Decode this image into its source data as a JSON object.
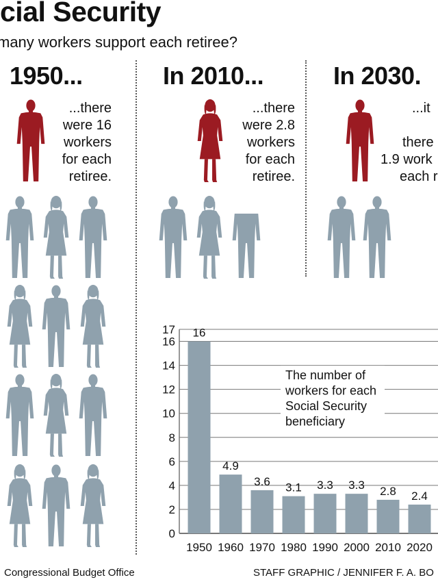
{
  "header": {
    "title": "cial Security",
    "subtitle": "many workers support each retiree?"
  },
  "eras": [
    {
      "label": "1950...",
      "caption": [
        "...there",
        "were 16",
        "workers",
        "for each",
        "retiree."
      ]
    },
    {
      "label": "In 2010...",
      "caption": [
        "...there",
        "were 2.8",
        "workers",
        "for each",
        "retiree."
      ]
    },
    {
      "label": "In 2030.",
      "caption": [
        "...it",
        "",
        "there",
        "1.9 work",
        "each r"
      ]
    }
  ],
  "colors": {
    "retiree": "#9b1b22",
    "worker": "#8fa1ad",
    "bar": "#8fa1ad",
    "grid": "#777777"
  },
  "chart_data": {
    "type": "bar",
    "categories": [
      "1950",
      "1960",
      "1970",
      "1980",
      "1990",
      "2000",
      "2010",
      "2020"
    ],
    "values": [
      16,
      4.9,
      3.6,
      3.1,
      3.3,
      3.3,
      2.8,
      2.4
    ],
    "value_labels": [
      "16",
      "4.9",
      "3.6",
      "3.1",
      "3.3",
      "3.3",
      "2.8",
      "2.4"
    ],
    "y_ticks": [
      0,
      2,
      4,
      6,
      8,
      10,
      12,
      14,
      16,
      17
    ],
    "ylim": [
      0,
      17
    ],
    "grid": true,
    "annotation": [
      "The number of",
      "workers for each",
      "Social Security",
      "beneficiary"
    ]
  },
  "footer": {
    "source": "Congressional Budget Office",
    "credit": "STAFF GRAPHIC / JENNIFER F. A. BO"
  }
}
